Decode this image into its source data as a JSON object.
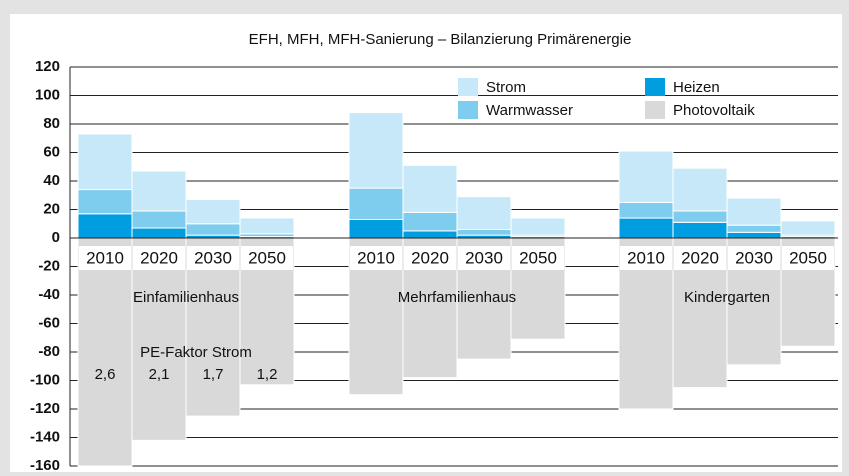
{
  "chart_data": {
    "type": "bar",
    "stacked": true,
    "title": "EFH, MFH, MFH-Sanierung – Bilanzierung Primärenergie",
    "categories": [
      "2010",
      "2020",
      "2030",
      "2050",
      "2010",
      "2020",
      "2030",
      "2050",
      "2010",
      "2020",
      "2030",
      "2050"
    ],
    "groups": [
      "Einfamilienhaus",
      "Mehrfamilienhaus",
      "Kindergarten"
    ],
    "series": [
      {
        "name": "Heizen",
        "color": "#009ee0",
        "values": [
          17,
          7,
          2,
          1,
          13,
          5,
          2,
          1,
          14,
          11,
          4,
          1
        ]
      },
      {
        "name": "Warmwasser",
        "color": "#7fcdee",
        "values": [
          17,
          12,
          8,
          2,
          22,
          13,
          4,
          1,
          11,
          8,
          5,
          1
        ]
      },
      {
        "name": "Strom",
        "color": "#c6e8f8",
        "values": [
          39,
          28,
          17,
          11,
          53,
          33,
          23,
          12,
          36,
          30,
          19,
          10
        ]
      },
      {
        "name": "Photovoltaik",
        "color": "#d9d9d9",
        "values": [
          -160,
          -142,
          -125,
          -103,
          -110,
          -98,
          -85,
          -71,
          -120,
          -105,
          -89,
          -76
        ]
      }
    ],
    "annotations": {
      "pe_factor_title": "PE-Faktor Strom",
      "pe_factor_labels": [
        "2,6",
        "2,1",
        "1,7",
        "1,2"
      ]
    },
    "ylim": [
      -160,
      120
    ],
    "yticks": [
      -160,
      -140,
      -120,
      -100,
      -80,
      -60,
      -40,
      -20,
      0,
      20,
      40,
      60,
      80,
      100,
      120
    ],
    "grid": true
  }
}
